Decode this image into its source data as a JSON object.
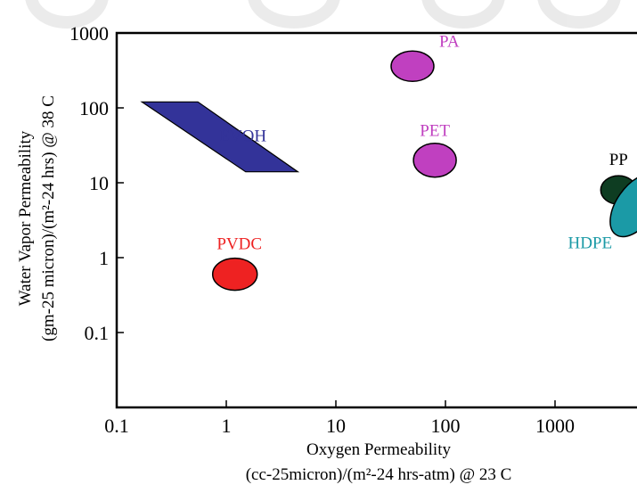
{
  "chart_data": {
    "type": "scatter",
    "title": "",
    "xlabel": [
      "Oxygen Permeability",
      "(cc-25micron)/(m²-24 hrs-atm) @ 23 C"
    ],
    "ylabel": [
      "Water Vapor Permeability",
      "(gm-25 micron)/(m²-24 hrs) @ 38 C"
    ],
    "x_scale": "log",
    "y_scale": "log",
    "xlim": [
      0.1,
      10000
    ],
    "ylim": [
      0.01,
      1000
    ],
    "x_ticks": [
      "0.1",
      "1",
      "10",
      "100",
      "1000"
    ],
    "y_ticks": [
      "0.1",
      "1",
      "10",
      "100",
      "1000"
    ],
    "grid": false,
    "series": [
      {
        "name": "PA",
        "shape": "ellipse",
        "x": 50,
        "y": 360,
        "color": "#c040c0",
        "label_color": "#c040c0"
      },
      {
        "name": "PET",
        "shape": "ellipse",
        "x": 80,
        "y": 20,
        "color": "#c040c0",
        "label_color": "#c040c0"
      },
      {
        "name": "PVDC",
        "shape": "ellipse",
        "x": 1.2,
        "y": 0.6,
        "color": "#ee2222",
        "label_color": "#ee2222"
      },
      {
        "name": "EVOH",
        "shape": "region",
        "x": [
          0.17,
          0.55,
          4.5,
          1.5
        ],
        "y": [
          120,
          120,
          14,
          14
        ],
        "color": "#333399",
        "label_color": "#333399"
      },
      {
        "name": "PP",
        "shape": "ellipse",
        "x": 3800,
        "y": 8,
        "color": "#0e3d22",
        "label_color": "#000000"
      },
      {
        "name": "HDPE",
        "shape": "ellipse",
        "x": 5500,
        "y": 5,
        "color": "#1b9aa6",
        "label_color": "#1b9aa6"
      }
    ]
  }
}
